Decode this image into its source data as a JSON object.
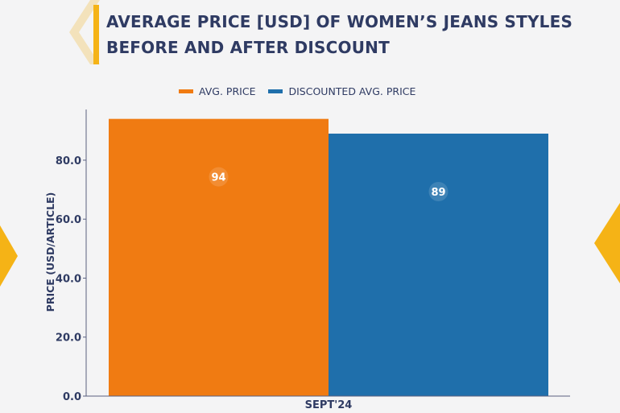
{
  "title": "AVERAGE PRICE [USD] OF WOMEN’S JEANS STYLES BEFORE AND AFTER DISCOUNT",
  "colors": {
    "accent": "#f5b316",
    "avg_price": "#f07b12",
    "discounted": "#1f6fab",
    "text": "#2f3b63"
  },
  "chart_data": {
    "type": "bar",
    "categories": [
      "SEPT'24"
    ],
    "series": [
      {
        "name": "AVG. PRICE",
        "values": [
          94
        ]
      },
      {
        "name": "DISCOUNTED AVG. PRICE",
        "values": [
          89
        ]
      }
    ],
    "data_labels": [
      "94",
      "89"
    ],
    "ylabel": "PRICE (USD/ARTICLE)",
    "xlabel": "",
    "ylim": [
      0,
      95
    ],
    "yticks": [
      0,
      20,
      40,
      60,
      80
    ],
    "ytick_labels": [
      "0.0",
      "20.0",
      "40.0",
      "60.0",
      "80.0"
    ],
    "legend_placement": "top-center",
    "grid": false
  }
}
